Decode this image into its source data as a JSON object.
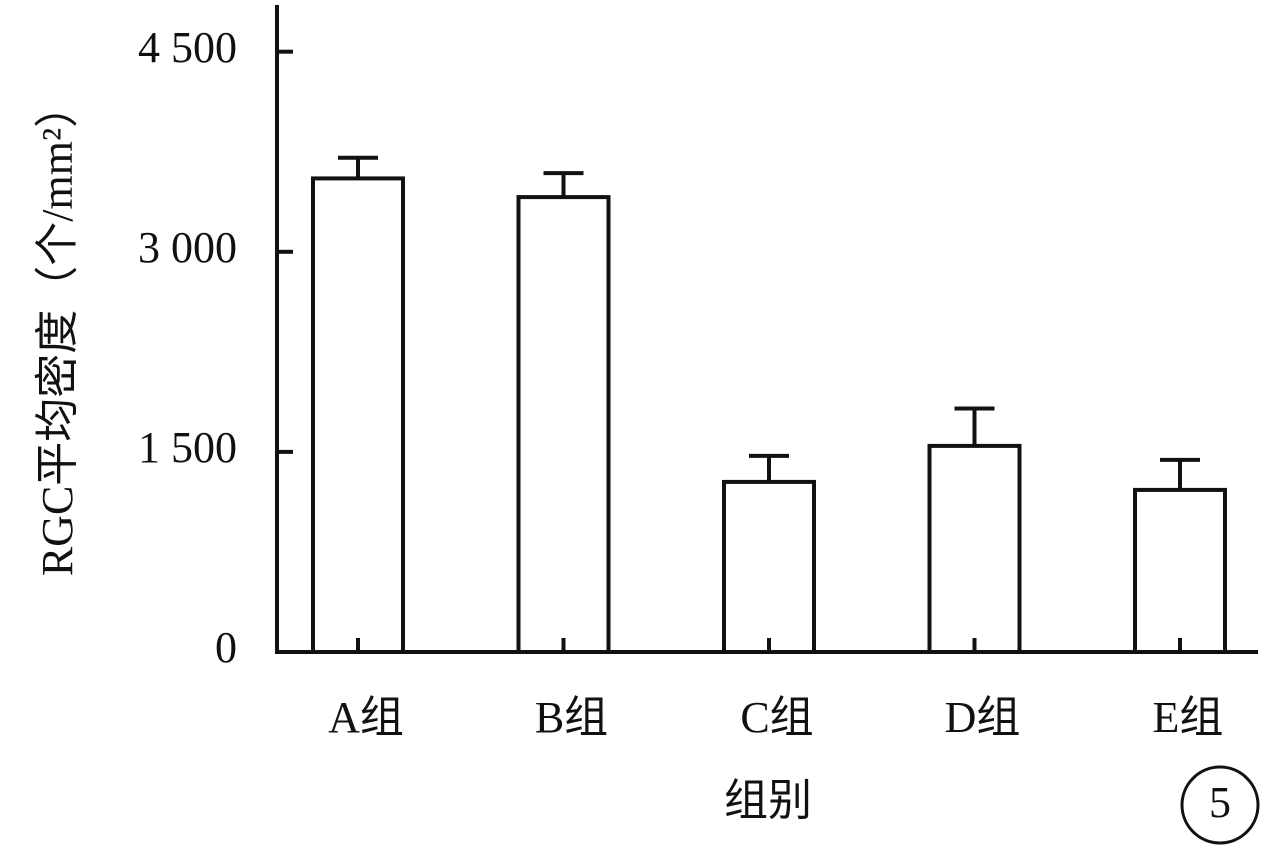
{
  "chart_data": {
    "type": "bar",
    "y_label": "RGC平均密度（个/mm²）",
    "x_label": "组别",
    "annotation": "5",
    "categories": [
      "A组",
      "B组",
      "C组",
      "D组",
      "E组"
    ],
    "values": [
      3550,
      3410,
      1275,
      1545,
      1215
    ],
    "errors": [
      155,
      180,
      195,
      280,
      225
    ],
    "color": "#ffffff",
    "ylim": [
      0,
      4850
    ],
    "yticks": [
      0,
      {
        "value": 1500,
        "label": "1 500"
      },
      {
        "value": 3000,
        "label": "3 000"
      },
      {
        "value": 4500,
        "label": "4 500"
      }
    ]
  }
}
